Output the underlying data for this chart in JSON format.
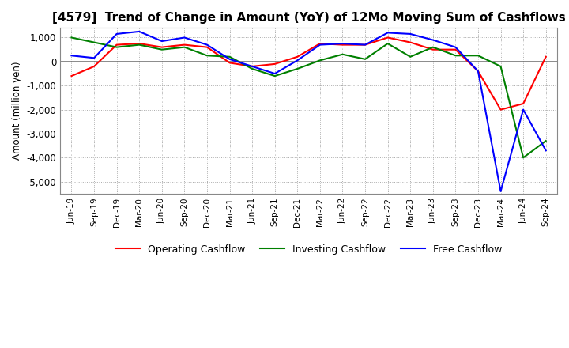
{
  "title": "[4579]  Trend of Change in Amount (YoY) of 12Mo Moving Sum of Cashflows",
  "ylabel": "Amount (million yen)",
  "ylim": [
    -5500,
    1400
  ],
  "yticks": [
    1000,
    0,
    -1000,
    -2000,
    -3000,
    -4000,
    -5000
  ],
  "x_labels": [
    "Jun-19",
    "Sep-19",
    "Dec-19",
    "Mar-20",
    "Jun-20",
    "Sep-20",
    "Dec-20",
    "Mar-21",
    "Jun-21",
    "Sep-21",
    "Dec-21",
    "Mar-22",
    "Jun-22",
    "Sep-22",
    "Dec-22",
    "Mar-23",
    "Jun-23",
    "Sep-23",
    "Dec-23",
    "Mar-24",
    "Jun-24",
    "Sep-24"
  ],
  "operating": [
    -600,
    -200,
    700,
    750,
    600,
    700,
    600,
    -50,
    -200,
    -100,
    200,
    750,
    700,
    700,
    1000,
    800,
    500,
    500,
    -400,
    -2000,
    -1750,
    200
  ],
  "investing": [
    1000,
    800,
    600,
    700,
    500,
    600,
    250,
    200,
    -300,
    -600,
    -300,
    50,
    300,
    100,
    750,
    200,
    600,
    250,
    250,
    -200,
    -4000,
    -3300
  ],
  "free": [
    250,
    150,
    1150,
    1250,
    850,
    1000,
    700,
    100,
    -200,
    -500,
    50,
    700,
    750,
    700,
    1200,
    1150,
    900,
    600,
    -400,
    -5400,
    -2000,
    -3700
  ],
  "operating_color": "#ff0000",
  "investing_color": "#008000",
  "free_color": "#0000ff",
  "grid_color": "#aaaaaa",
  "zero_line_color": "#777777",
  "bg_color": "#ffffff",
  "title_fontsize": 11
}
